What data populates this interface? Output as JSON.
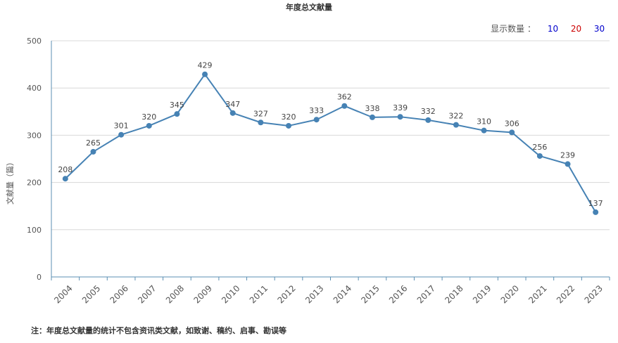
{
  "chart_data": {
    "type": "line",
    "title": "年度总文献量",
    "xlabel": "",
    "ylabel": "文献量（篇）",
    "categories": [
      "2004",
      "2005",
      "2006",
      "2007",
      "2008",
      "2009",
      "2010",
      "2011",
      "2012",
      "2013",
      "2014",
      "2015",
      "2016",
      "2017",
      "2018",
      "2019",
      "2020",
      "2021",
      "2022",
      "2023"
    ],
    "series": [
      {
        "values": [
          208,
          265,
          301,
          320,
          345,
          429,
          347,
          327,
          320,
          333,
          362,
          338,
          339,
          332,
          322,
          310,
          306,
          256,
          239,
          137
        ]
      }
    ],
    "ylim": [
      0,
      500
    ],
    "yticks": [
      "0",
      "100",
      "200",
      "300",
      "400",
      "500"
    ],
    "grid": true,
    "line_color": "#4682b4"
  },
  "controls": {
    "display_label": "显示数量 ：",
    "options": [
      "10",
      "20",
      "30"
    ],
    "option_colors": [
      "#0000cc",
      "#cc0000",
      "#0000cc"
    ]
  },
  "footnote": "注：年度总文献量的统计不包含资讯类文献，如致谢、稿约、启事、勘误等"
}
